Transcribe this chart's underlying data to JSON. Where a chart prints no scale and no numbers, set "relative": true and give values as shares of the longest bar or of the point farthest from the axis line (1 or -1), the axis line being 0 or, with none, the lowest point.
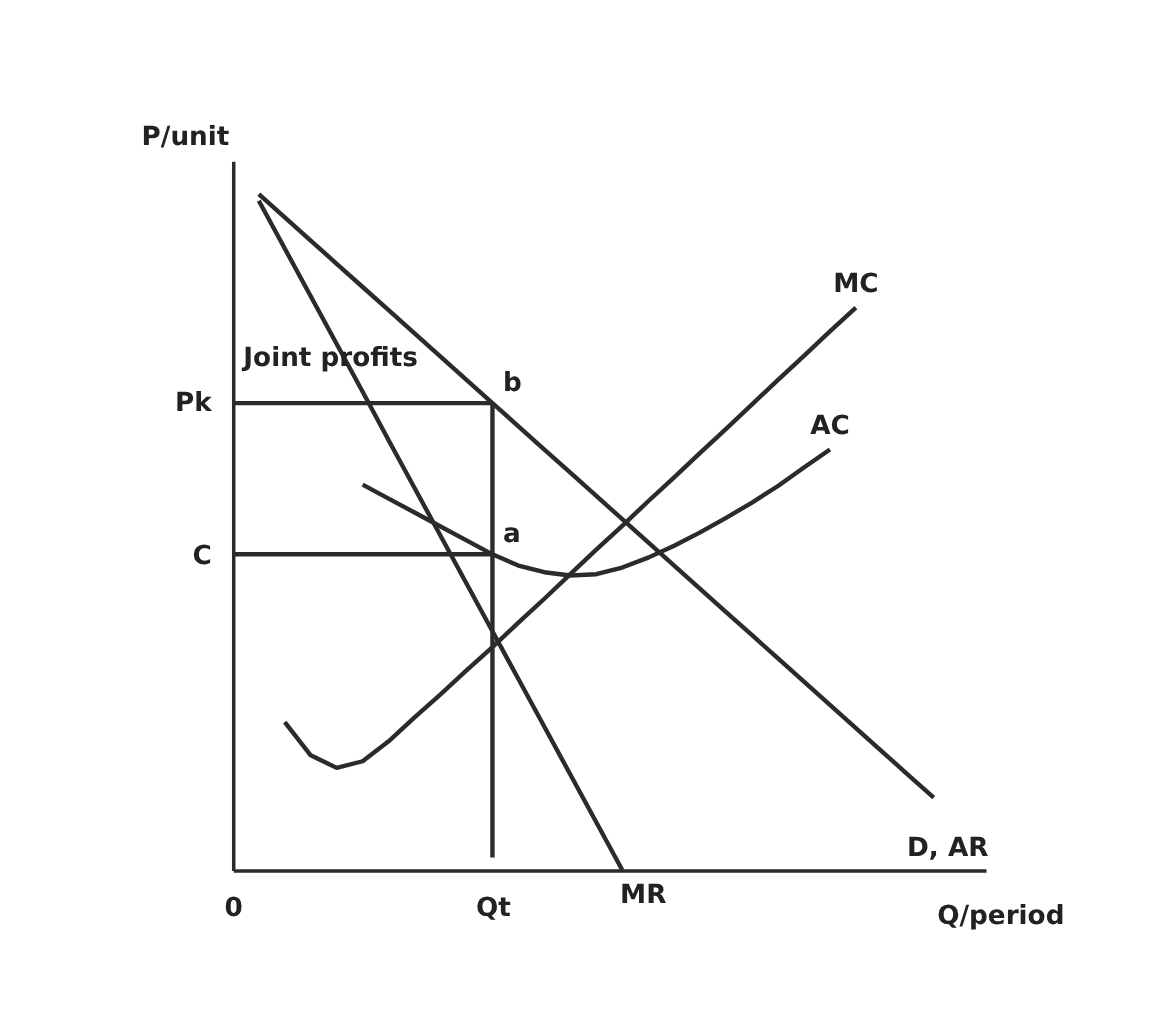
{
  "chart_data": {
    "type": "line",
    "xlabel": "Q/period",
    "ylabel": "P/unit",
    "relative": true,
    "categories": [
      "0",
      null,
      null,
      null,
      null,
      null,
      null,
      null,
      null,
      null,
      "Qt",
      null,
      null,
      null,
      null,
      null,
      null,
      null,
      null,
      null,
      null,
      null,
      null,
      null,
      null,
      null,
      null,
      null,
      null,
      null
    ],
    "grid": false,
    "legend": false,
    "marker": "none",
    "line_style": "solid",
    "series": [
      {
        "name": "D, AR",
        "color": "#2b2b2b",
        "values": [
          null,
          1.0,
          0.965,
          0.93,
          0.895,
          0.86,
          0.825,
          0.79,
          0.755,
          0.72,
          0.685,
          0.65,
          0.615,
          0.58,
          0.545,
          0.51,
          0.475,
          0.44,
          0.405,
          0.37,
          0.335,
          0.3,
          0.265,
          0.23,
          0.195,
          0.16,
          0.125,
          0.09,
          null,
          null
        ]
      },
      {
        "name": "MR",
        "color": "#2b2b2b",
        "values": [
          null,
          0.99,
          0.918,
          0.846,
          0.774,
          0.702,
          0.629,
          0.557,
          0.485,
          0.413,
          0.341,
          0.269,
          0.197,
          0.125,
          0.053,
          -0.019,
          null,
          null,
          null,
          null,
          null,
          null,
          null,
          null,
          null,
          null,
          null,
          null,
          null,
          null
        ]
      },
      {
        "name": "MC",
        "color": "#2b2b2b",
        "values": [
          null,
          null,
          0.204,
          0.154,
          0.135,
          0.145,
          0.175,
          0.211,
          0.246,
          0.282,
          0.317,
          0.354,
          0.39,
          0.427,
          0.464,
          0.5,
          0.537,
          0.573,
          0.61,
          0.646,
          0.683,
          0.72,
          0.756,
          0.793,
          0.829,
          null,
          null,
          null,
          null,
          null
        ]
      },
      {
        "name": "AC",
        "color": "#2b2b2b",
        "values": [
          null,
          null,
          null,
          null,
          null,
          0.562,
          0.541,
          0.52,
          0.499,
          0.478,
          0.457,
          0.44,
          0.43,
          0.425,
          0.427,
          0.437,
          0.452,
          0.47,
          0.49,
          0.512,
          0.535,
          0.56,
          0.588,
          0.615,
          null,
          null,
          null,
          null,
          null,
          null
        ]
      },
      {
        "color": "#2b2b2b",
        "values": [
          0.685,
          0.685,
          0.685,
          0.685,
          0.685,
          0.685,
          0.685,
          0.685,
          0.685,
          0.685,
          0.685,
          null,
          null,
          null,
          null,
          null,
          null,
          null,
          null,
          null,
          null,
          null,
          null,
          null,
          null,
          null,
          null,
          null,
          null,
          null
        ]
      },
      {
        "color": "#2b2b2b",
        "values": [
          0.457,
          0.457,
          0.457,
          0.457,
          0.457,
          0.457,
          0.457,
          0.457,
          0.457,
          0.457,
          0.457,
          null,
          null,
          null,
          null,
          null,
          null,
          null,
          null,
          null,
          null,
          null,
          null,
          null,
          null,
          null,
          null,
          null,
          null,
          null
        ]
      }
    ],
    "ref_lines": [
      {
        "axis": "x",
        "value": "Qt",
        "color": "#2b2b2b"
      }
    ],
    "annotations": [
      "Joint profits",
      {
        "text": "a",
        "x": "Qt",
        "y": 0.457
      },
      {
        "text": "b",
        "x": "Qt",
        "y": 0.685
      },
      "Pk",
      "C"
    ]
  }
}
